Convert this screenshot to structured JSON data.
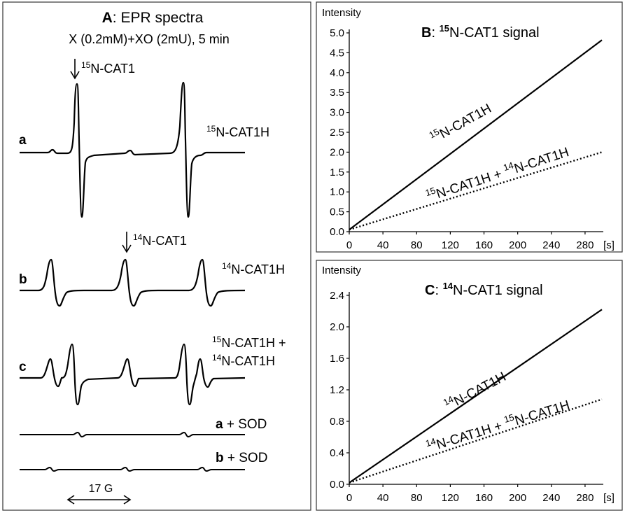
{
  "colors": {
    "ink": "#000000",
    "background": "#ffffff",
    "frame": "#333333"
  },
  "panel_a": {
    "letter": "A",
    "title_rest": ": EPR spectra",
    "subtitle": "X (0.2mM)+XO (2mU), 5 min",
    "marker_15": {
      "sup": "15",
      "rest": "N-CAT1"
    },
    "marker_14": {
      "sup": "14",
      "rest": "N-CAT1"
    },
    "traces": [
      {
        "letter": "a",
        "label_sup": "15",
        "label_rest": "N-CAT1H"
      },
      {
        "letter": "b",
        "label_sup": "14",
        "label_rest": "N-CAT1H"
      },
      {
        "letter": "c",
        "label_line1_sup": "15",
        "label_line1_rest": "N-CAT1H +",
        "label_line2_sup": "14",
        "label_line2_rest": "N-CAT1H"
      },
      {
        "letter": "a",
        "label_rest": " + SOD"
      },
      {
        "letter": "b",
        "label_rest": " + SOD"
      }
    ],
    "scale_bar": "17 G"
  },
  "chart_data": [
    {
      "type": "line",
      "title_letter": "B",
      "title_sup": "15",
      "title_rest": "N-CAT1 signal",
      "title_prefix": ": ",
      "ylabel": "Intensity",
      "xunit": "[s]",
      "xlim": [
        0,
        300
      ],
      "ylim": [
        0,
        5.0
      ],
      "xticks": [
        "0",
        "40",
        "80",
        "120",
        "160",
        "200",
        "240",
        "280"
      ],
      "yticks": [
        "0.0",
        "0.5",
        "1.0",
        "1.5",
        "2.0",
        "2.5",
        "3.0",
        "3.5",
        "4.0",
        "4.5",
        "5.0"
      ],
      "series": [
        {
          "style": "solid",
          "label_sup1": "15",
          "label_rest1": "N-CAT1H",
          "x": [
            0,
            300
          ],
          "y": [
            0.05,
            4.82
          ]
        },
        {
          "style": "dotted",
          "label_sup1": "15",
          "label_rest1": "N-CAT1H + ",
          "label_sup2": "14",
          "label_rest2": "N-CAT1H",
          "x": [
            0,
            300
          ],
          "y": [
            0.05,
            2.0
          ]
        }
      ]
    },
    {
      "type": "line",
      "title_letter": "C",
      "title_sup": "14",
      "title_rest": "N-CAT1 signal",
      "title_prefix": ": ",
      "ylabel": "Intensity",
      "xunit": "[s]",
      "xlim": [
        0,
        300
      ],
      "ylim": [
        0,
        2.4
      ],
      "xticks": [
        "0",
        "40",
        "80",
        "120",
        "160",
        "200",
        "240",
        "280"
      ],
      "yticks": [
        "0.0",
        "0.4",
        "0.8",
        "1.2",
        "1.6",
        "2.0",
        "2.4"
      ],
      "series": [
        {
          "style": "solid",
          "label_sup1": "14",
          "label_rest1": "N-CAT1H",
          "x": [
            0,
            300
          ],
          "y": [
            0.02,
            2.22
          ]
        },
        {
          "style": "dotted",
          "label_sup1": "14",
          "label_rest1": "N-CAT1H + ",
          "label_sup2": "15",
          "label_rest2": "N-CAT1H",
          "x": [
            0,
            300
          ],
          "y": [
            0.02,
            1.08
          ]
        }
      ]
    }
  ]
}
